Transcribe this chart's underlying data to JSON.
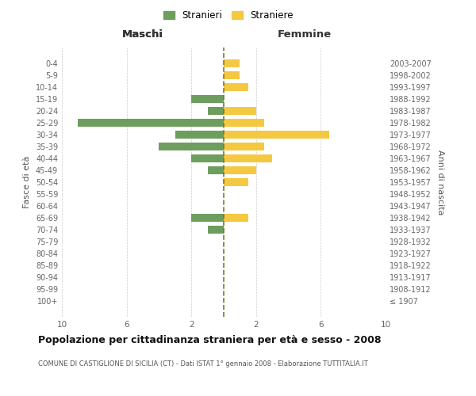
{
  "age_groups": [
    "100+",
    "95-99",
    "90-94",
    "85-89",
    "80-84",
    "75-79",
    "70-74",
    "65-69",
    "60-64",
    "55-59",
    "50-54",
    "45-49",
    "40-44",
    "35-39",
    "30-34",
    "25-29",
    "20-24",
    "15-19",
    "10-14",
    "5-9",
    "0-4"
  ],
  "birth_years": [
    "≤ 1907",
    "1908-1912",
    "1913-1917",
    "1918-1922",
    "1923-1927",
    "1928-1932",
    "1933-1937",
    "1938-1942",
    "1943-1947",
    "1948-1952",
    "1953-1957",
    "1958-1962",
    "1963-1967",
    "1968-1972",
    "1973-1977",
    "1978-1982",
    "1983-1987",
    "1988-1992",
    "1993-1997",
    "1998-2002",
    "2003-2007"
  ],
  "maschi": [
    0,
    0,
    0,
    0,
    0,
    0,
    1,
    2,
    0,
    0,
    0,
    1,
    2,
    4,
    3,
    9,
    1,
    2,
    0,
    0,
    0
  ],
  "femmine": [
    0,
    0,
    0,
    0,
    0,
    0,
    0,
    1.5,
    0,
    0,
    1.5,
    2,
    3,
    2.5,
    6.5,
    2.5,
    2,
    0,
    1.5,
    1,
    1
  ],
  "male_color": "#6d9e5e",
  "female_color": "#f5c842",
  "title": "Popolazione per cittadinanza straniera per età e sesso - 2008",
  "subtitle": "COMUNE DI CASTIGLIONE DI SICILIA (CT) - Dati ISTAT 1° gennaio 2008 - Elaborazione TUTTITALIA.IT",
  "ylabel_left": "Fasce di età",
  "ylabel_right": "Anni di nascita",
  "xlabel_left": "Maschi",
  "xlabel_right": "Femmine",
  "legend_male": "Stranieri",
  "legend_female": "Straniere",
  "xlim": 10,
  "background_color": "#ffffff",
  "grid_color": "#cccccc",
  "dashed_line_color": "#7a7a2a"
}
